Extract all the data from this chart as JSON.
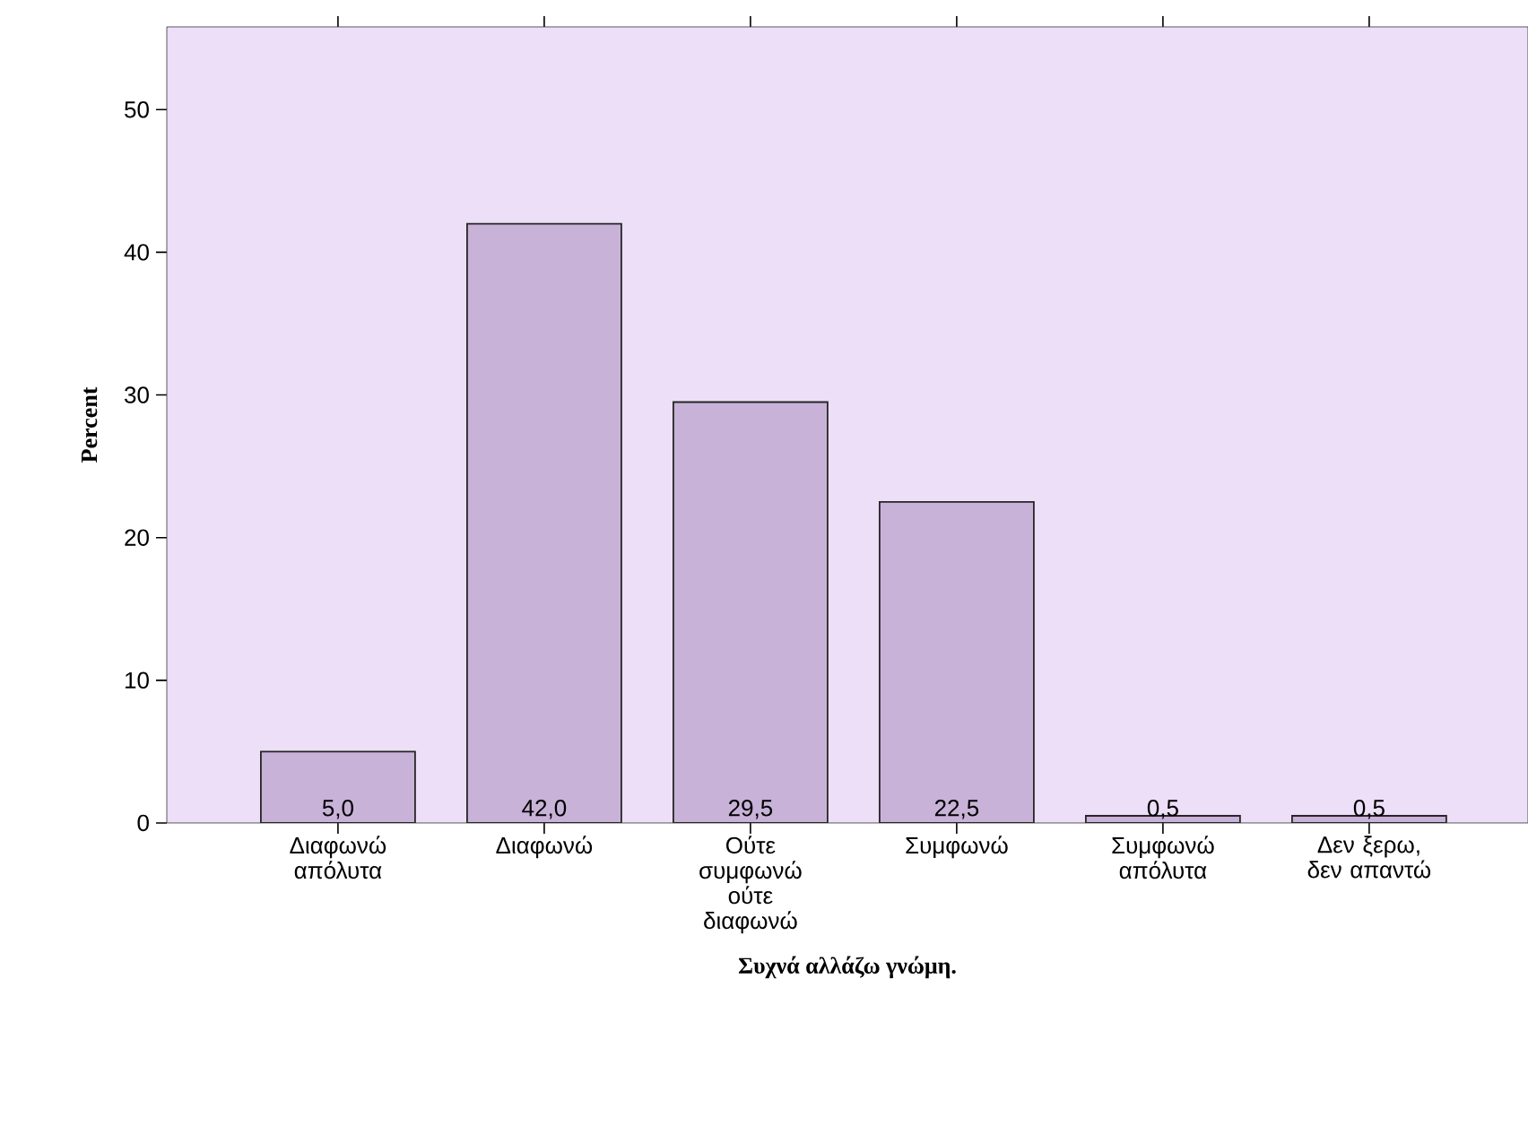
{
  "chart_data": {
    "type": "bar",
    "xlabel": "Συχνά αλλάζω γνώμη.",
    "ylabel": "Percent",
    "categories": [
      "Διαφωνώ απόλυτα",
      "Διαφωνώ",
      "Ούτε συμφωνώ ούτε διαφωνώ",
      "Συμφωνώ",
      "Συμφωνώ απόλυτα",
      "Δεν ξερω, δεν απαντώ"
    ],
    "values": [
      5.0,
      42.0,
      29.5,
      22.5,
      0.5,
      0.5
    ],
    "value_labels": [
      "5,0",
      "42,0",
      "29,5",
      "22,5",
      "0,5",
      "0,5"
    ],
    "color": "#c8b2d8",
    "ylim": [
      0,
      55.8
    ],
    "yticks": [
      0,
      10,
      20,
      30,
      40,
      50
    ]
  }
}
